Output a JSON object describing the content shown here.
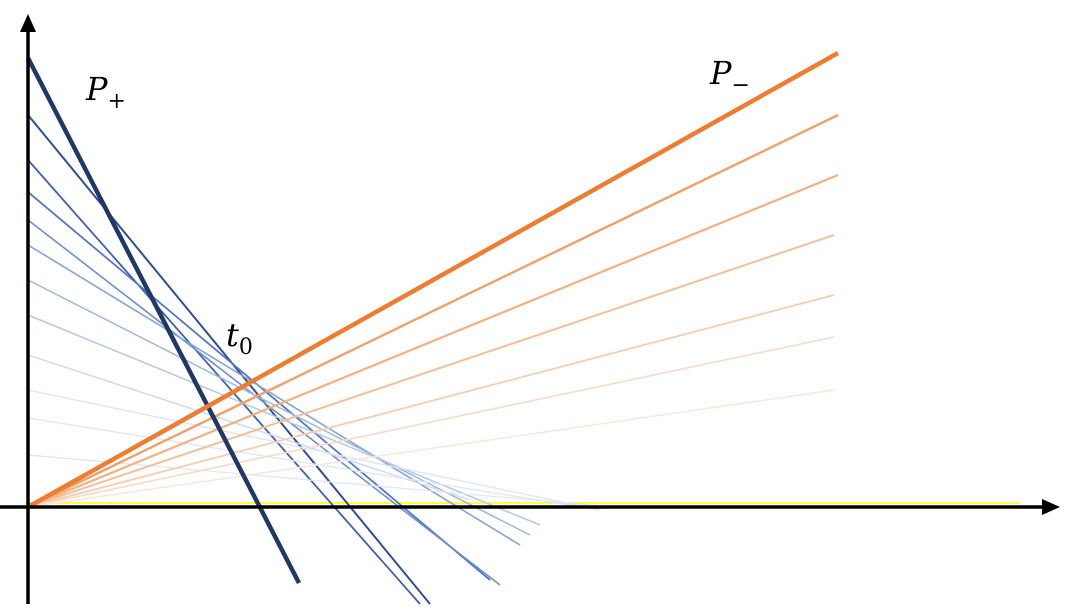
{
  "labels": {
    "p_plus": {
      "main": "P",
      "sub": "+"
    },
    "p_minus": {
      "main": "P",
      "sub": "−"
    },
    "t0": {
      "main": "t",
      "sub": "0"
    }
  },
  "colors": {
    "axis": "#000000",
    "p_plus": "#1f3864",
    "p_minus": "#ed7d31",
    "baseline": "#ffff00",
    "blue_family": [
      "#2f4f8f",
      "#3f62a8",
      "#5679bd",
      "#6e8fcc",
      "#86a3d6",
      "#9db6df",
      "#b4c8e8",
      "#cad8f0",
      "#dde6f6"
    ],
    "orange_family": [
      "#f0a06a",
      "#f2b083",
      "#f4bf9b",
      "#f6cdb1",
      "#f8dac7",
      "#fae6da"
    ]
  }
}
